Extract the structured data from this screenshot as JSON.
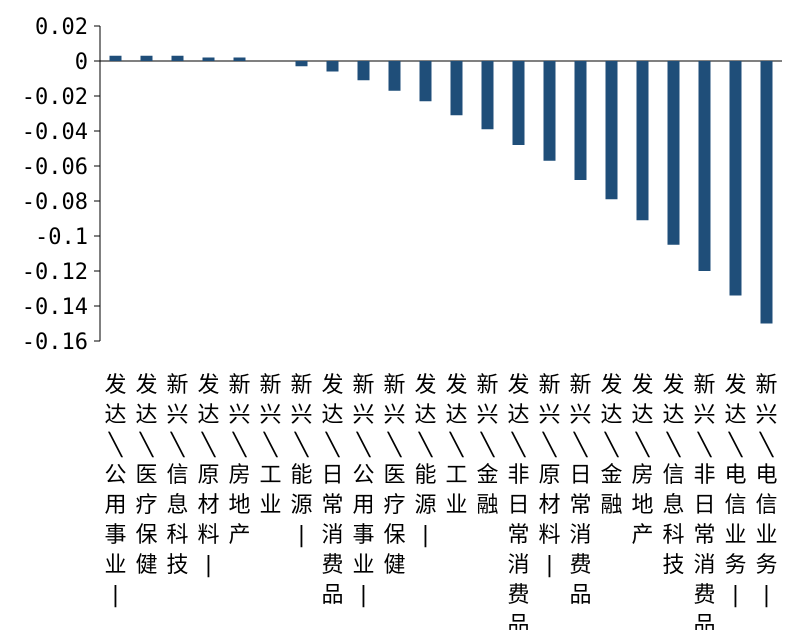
{
  "chart_data": {
    "type": "bar",
    "title": "",
    "xlabel": "",
    "ylabel": "",
    "ylim": [
      -0.16,
      0.02
    ],
    "yticks": [
      0.02,
      0,
      -0.02,
      -0.04,
      -0.06,
      -0.08,
      -0.1,
      -0.12,
      -0.14,
      -0.16
    ],
    "ytick_labels": [
      "0.02",
      "0",
      "-0.02",
      "-0.04",
      "-0.06",
      "-0.08",
      "-0.1",
      "-0.12",
      "-0.14",
      "-0.16"
    ],
    "grid": false,
    "legend": "none",
    "bar_color": "#1f4e79",
    "categories": [
      "发达/公用事业|",
      "发达/医疗保健",
      "新兴/信息科技",
      "发达/原材料|",
      "新兴/房地产",
      "新兴/工业",
      "新兴/能源|",
      "发达/日常消费品",
      "新兴/公用事业|",
      "新兴/医疗保健",
      "发达/能源|",
      "发达/工业",
      "新兴/金融",
      "发达/非日常消费品",
      "新兴/原材料|",
      "新兴/日常消费品",
      "发达/金融",
      "发达/房地产",
      "发达/信息科技",
      "新兴/非日常消费品",
      "发达/电信业务|",
      "新兴/电信业务|"
    ],
    "values": [
      0.003,
      0.003,
      0.003,
      0.002,
      0.002,
      0.0,
      -0.003,
      -0.006,
      -0.011,
      -0.017,
      -0.023,
      -0.031,
      -0.039,
      -0.048,
      -0.057,
      -0.068,
      -0.079,
      -0.091,
      -0.105,
      -0.12,
      -0.134,
      -0.15
    ]
  }
}
